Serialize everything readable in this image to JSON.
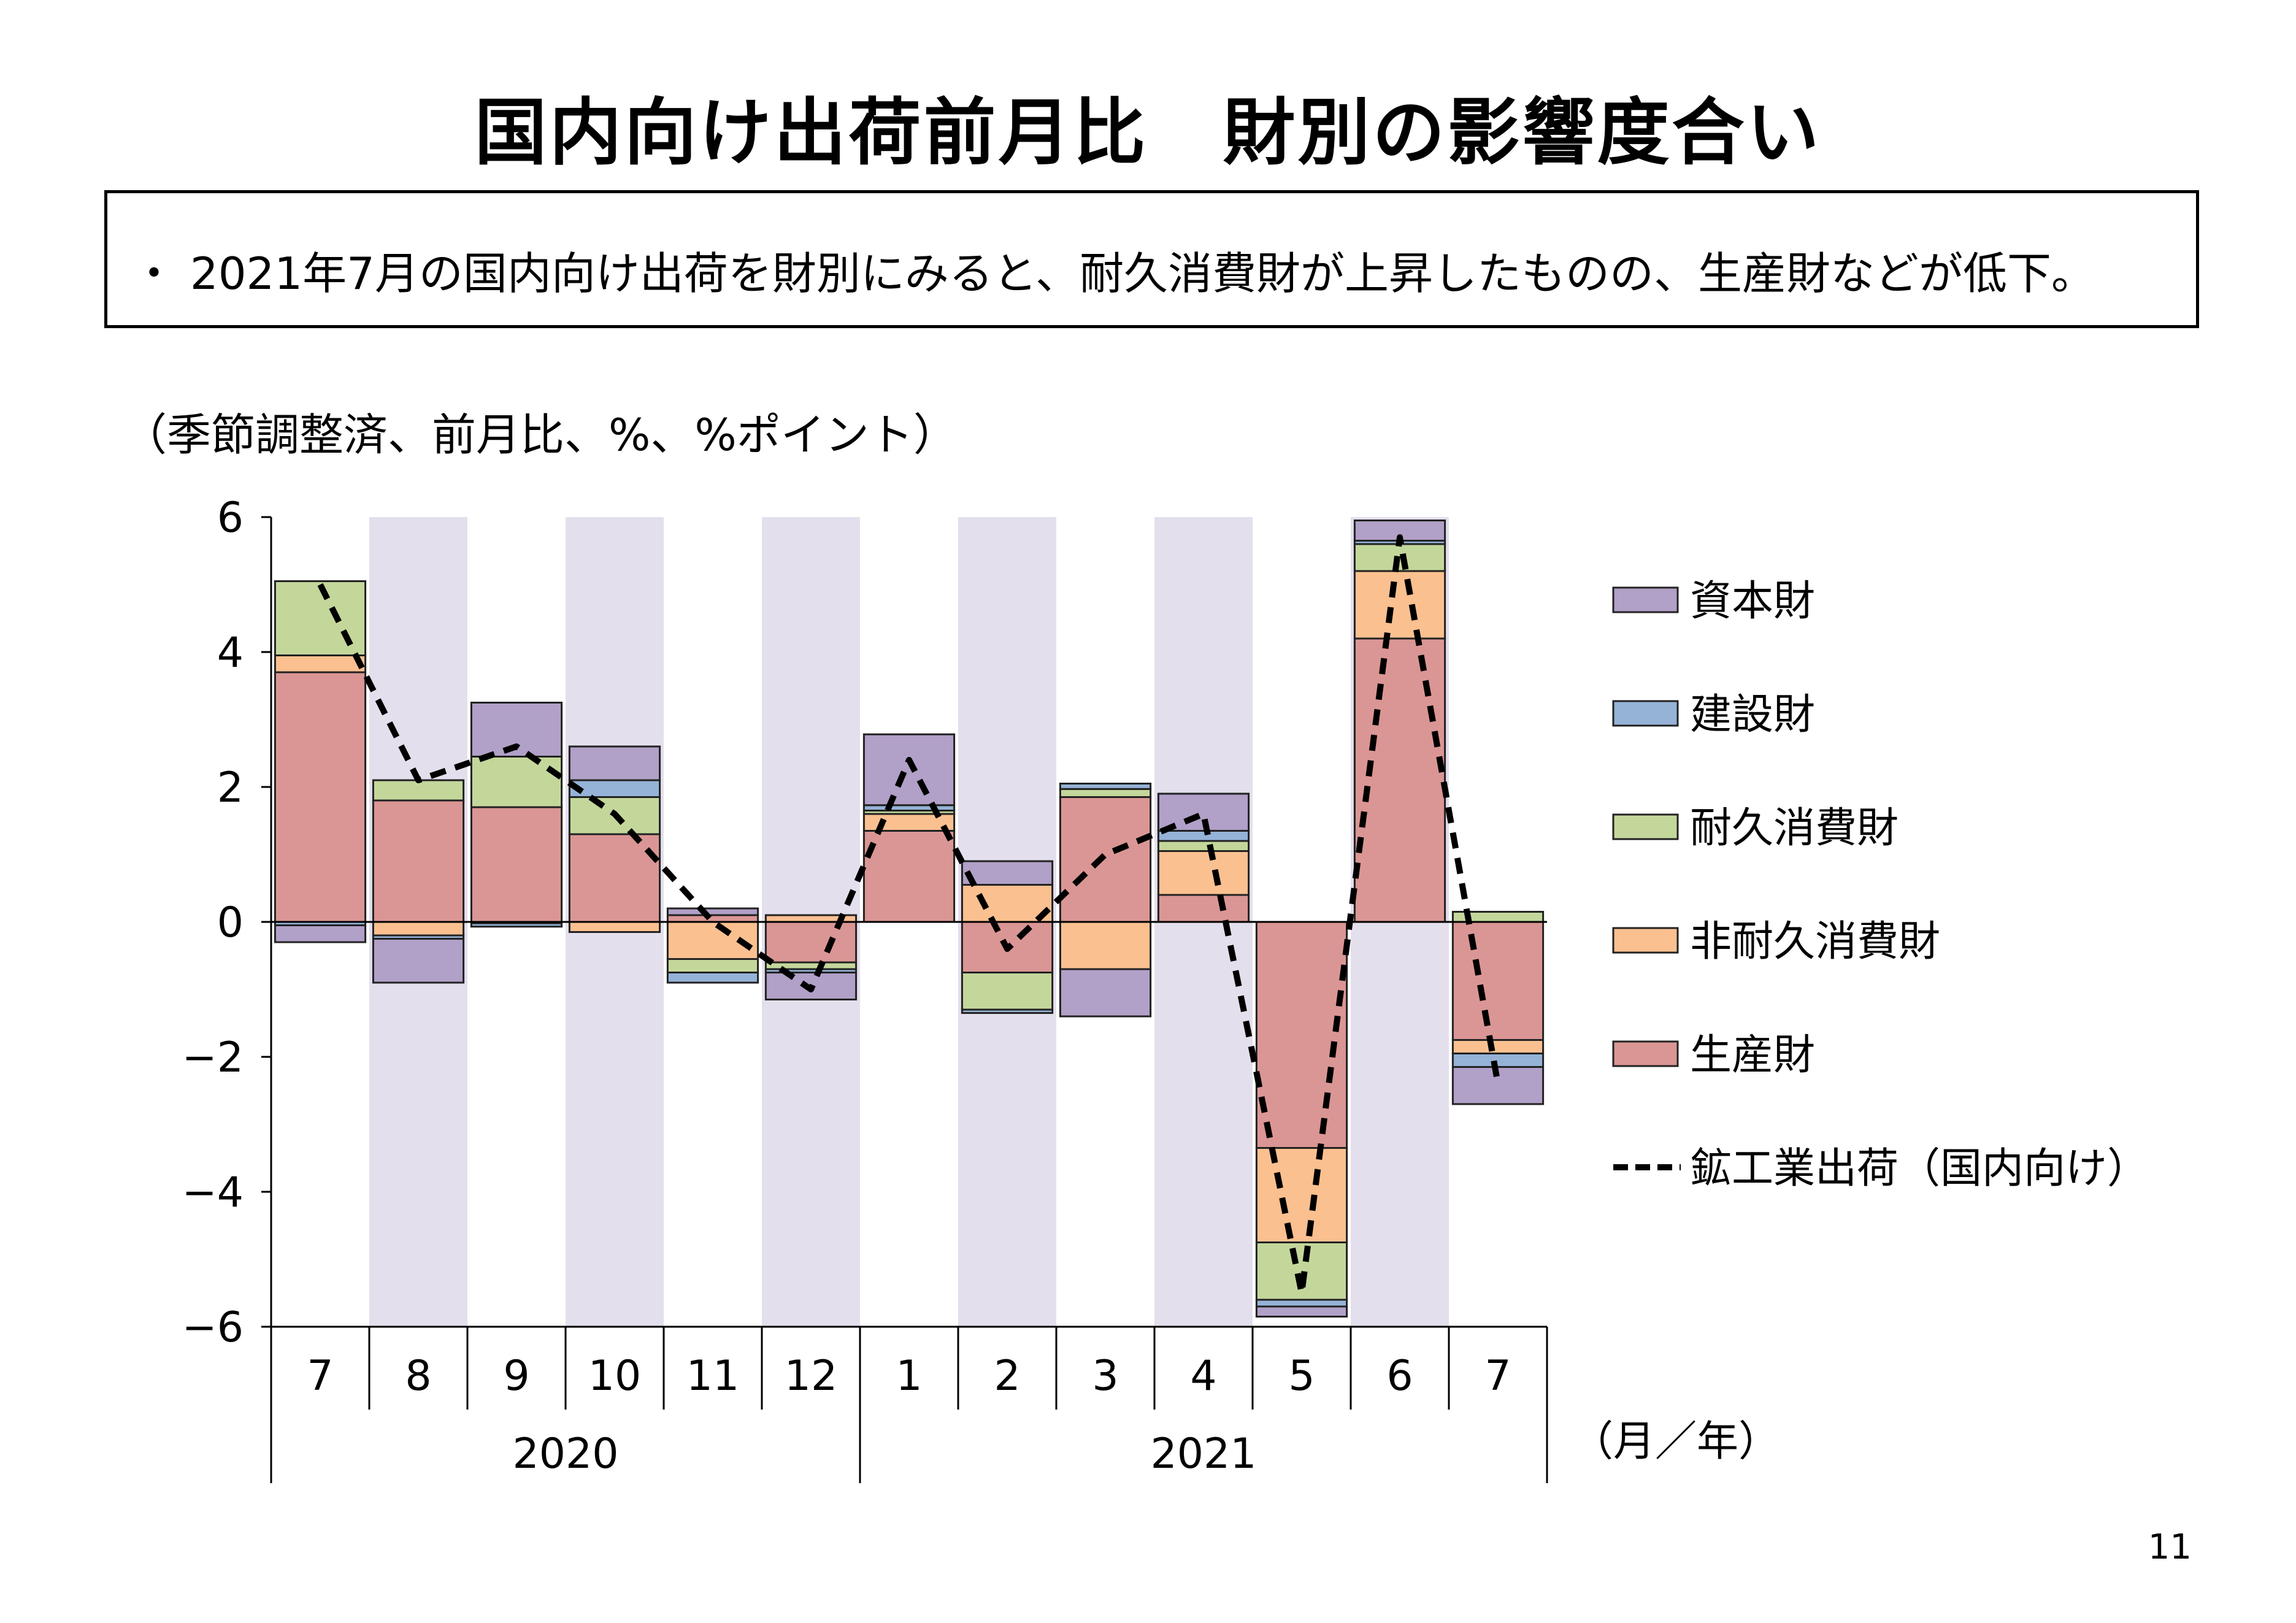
{
  "page": {
    "title": "国内向け出荷前月比　財別の影響度合い",
    "summary": "・ 2021年7月の国内向け出荷を財別にみると、耐久消費財が上昇したものの、生産財などが低下。",
    "unit_note": "（季節調整済、前月比、%、%ポイント）",
    "page_number": "11"
  },
  "chart_data": {
    "type": "bar",
    "stacked": true,
    "x_unit_label": "（月／年）",
    "categories": [
      "7",
      "8",
      "9",
      "10",
      "11",
      "12",
      "1",
      "2",
      "3",
      "4",
      "5",
      "6",
      "7"
    ],
    "year_groups": [
      {
        "label": "2020",
        "count": 6
      },
      {
        "label": "2021",
        "count": 7
      }
    ],
    "ylim": [
      -6,
      6
    ],
    "yticks": [
      "6",
      "4",
      "2",
      "0",
      "−2",
      "−4",
      "−6"
    ],
    "shaded_months": [
      1,
      3,
      5,
      7,
      9,
      11
    ],
    "shade_color": "#e4dfec",
    "series": [
      {
        "name": "生産財",
        "color": "#da9694",
        "values": [
          3.7,
          1.8,
          1.7,
          1.3,
          0.1,
          -0.6,
          1.35,
          -0.75,
          1.85,
          0.4,
          -3.35,
          4.2,
          -1.75
        ]
      },
      {
        "name": "非耐久消費財",
        "color": "#fac090",
        "values": [
          0.25,
          -0.2,
          -0.02,
          -0.15,
          -0.55,
          0.1,
          0.25,
          0.55,
          -0.7,
          0.65,
          -1.4,
          1.0,
          -0.2
        ]
      },
      {
        "name": "耐久消費財",
        "color": "#c4d79b",
        "values": [
          1.1,
          0.3,
          0.75,
          0.55,
          -0.2,
          -0.1,
          0.05,
          -0.55,
          0.12,
          0.15,
          -0.85,
          0.4,
          0.15
        ]
      },
      {
        "name": "建設財",
        "color": "#95b3d7",
        "values": [
          -0.05,
          -0.05,
          -0.05,
          0.25,
          -0.15,
          -0.05,
          0.08,
          -0.05,
          0.08,
          0.15,
          -0.1,
          0.05,
          -0.2
        ]
      },
      {
        "name": "資本財",
        "color": "#b1a0c7",
        "values": [
          -0.25,
          -0.65,
          0.8,
          0.5,
          0.1,
          -0.4,
          1.05,
          0.35,
          -0.7,
          0.55,
          -0.15,
          0.3,
          -0.55
        ]
      }
    ],
    "line": {
      "name": "鉱工業出荷（国内向け）",
      "style": "dashed",
      "color": "#000000",
      "values": [
        5.0,
        2.1,
        2.6,
        1.6,
        0.0,
        -1.0,
        2.4,
        -0.4,
        1.0,
        1.6,
        -5.5,
        5.7,
        -2.4
      ]
    },
    "legend_order": [
      "資本財",
      "建設財",
      "耐久消費財",
      "非耐久消費財",
      "生産財",
      "鉱工業出荷（国内向け）"
    ],
    "legend_position": "right"
  }
}
